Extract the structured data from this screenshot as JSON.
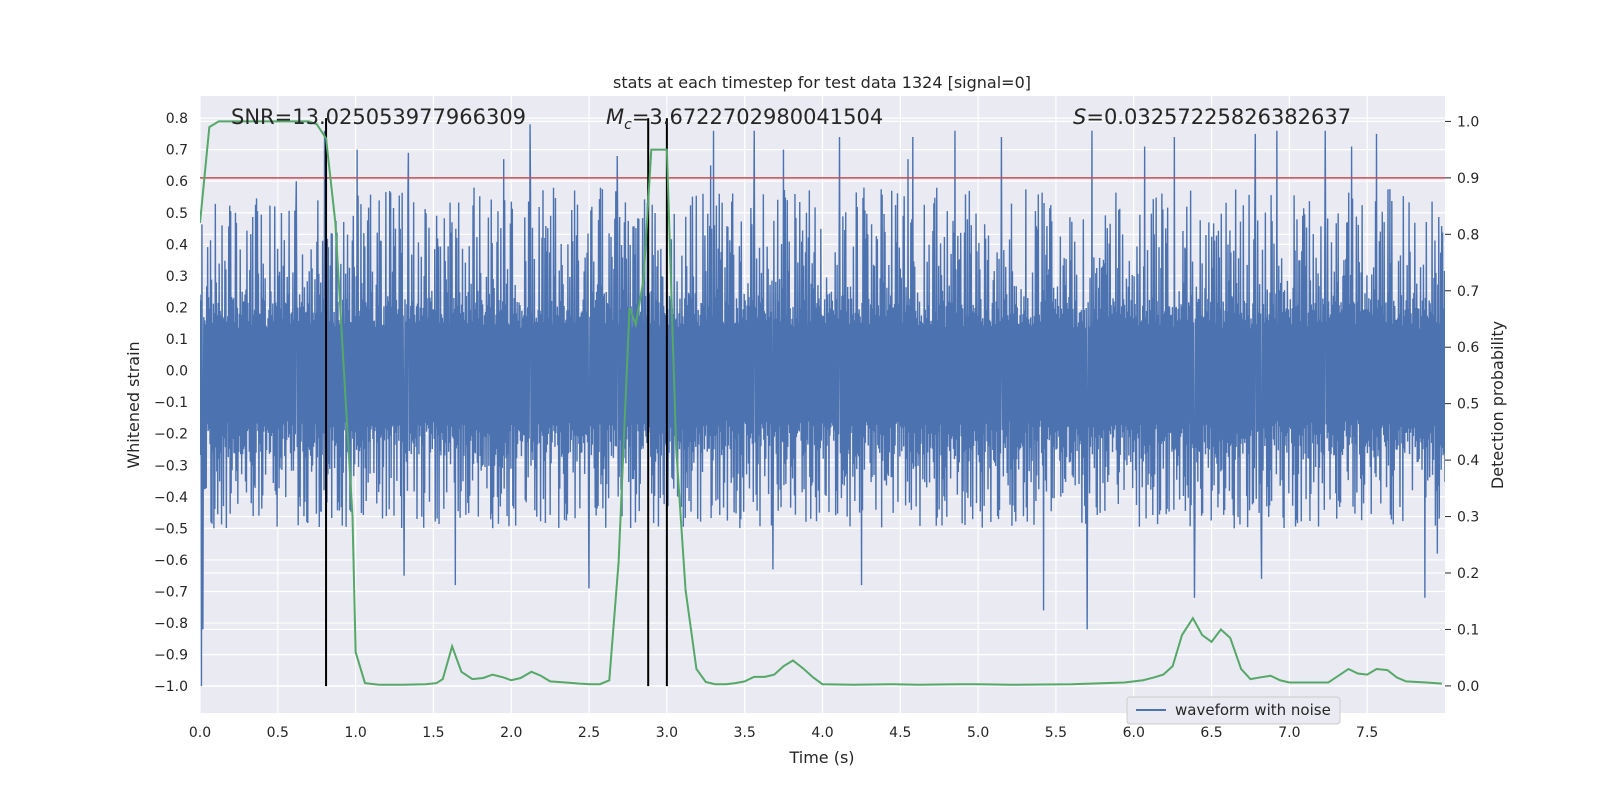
{
  "chart_data": {
    "type": "line",
    "title": "stats at each timestep for test data 1324 [signal=0]",
    "xlabel": "Time (s)",
    "ylabel": "Whitened strain",
    "y2label": "Detection probability",
    "xlim": [
      0,
      8
    ],
    "ylim": [
      -1.085,
      0.87
    ],
    "y2lim": [
      -0.048,
      1.045
    ],
    "x_ticks": [
      0.0,
      0.5,
      1.0,
      1.5,
      2.0,
      2.5,
      3.0,
      3.5,
      4.0,
      4.5,
      5.0,
      5.5,
      6.0,
      6.5,
      7.0,
      7.5
    ],
    "y_ticks": [
      0.8,
      0.7,
      0.6,
      0.5,
      0.4,
      0.3,
      0.2,
      0.1,
      0.0,
      -0.1,
      -0.2,
      -0.3,
      -0.4,
      -0.5,
      -0.6,
      -0.7,
      -0.8,
      -0.9,
      -1.0
    ],
    "y2_ticks": [
      1.0,
      0.9,
      0.8,
      0.7,
      0.6,
      0.5,
      0.4,
      0.3,
      0.2,
      0.1,
      0.0
    ],
    "grid": true,
    "legend_position": "bottom-right",
    "annotations": {
      "snr": "SNR=13.025053977966309",
      "mc_symbol": "M",
      "mc_subscript": "c",
      "mc_value": "=3.6722702980041504",
      "s_symbol": "S",
      "s_value": "=0.03257225826382637"
    },
    "threshold": {
      "value": 0.9,
      "axis": "right",
      "color": "#c44e52"
    },
    "vertical_lines": {
      "x": [
        0.81,
        2.88,
        3.0
      ],
      "y_from": -1.0,
      "y_to": 0.8,
      "color": "#000000"
    },
    "series": [
      {
        "name": "waveform with noise",
        "color": "#4c72b0",
        "axis": "left",
        "band": {
          "dense_upper": [
            0.22,
            0.25
          ],
          "dense_lower": [
            -0.26,
            -0.29
          ],
          "typical_peak_max": 0.58,
          "typical_trough_min": -0.5
        },
        "spikes": [
          {
            "x": 0.01,
            "y": -1.0
          },
          {
            "x": 0.02,
            "y": -0.82
          },
          {
            "x": 0.62,
            "y": 0.6
          },
          {
            "x": 0.8,
            "y": 0.76
          },
          {
            "x": 1.01,
            "y": 0.7
          },
          {
            "x": 1.34,
            "y": 0.69
          },
          {
            "x": 1.31,
            "y": -0.65
          },
          {
            "x": 1.64,
            "y": -0.68
          },
          {
            "x": 1.95,
            "y": 0.67
          },
          {
            "x": 2.12,
            "y": 0.78
          },
          {
            "x": 2.5,
            "y": -0.69
          },
          {
            "x": 2.68,
            "y": 0.68
          },
          {
            "x": 3.28,
            "y": 0.65
          },
          {
            "x": 3.3,
            "y": 0.76
          },
          {
            "x": 3.56,
            "y": 0.76
          },
          {
            "x": 3.68,
            "y": -0.63
          },
          {
            "x": 3.75,
            "y": 0.7
          },
          {
            "x": 4.11,
            "y": 0.74
          },
          {
            "x": 4.25,
            "y": -0.68
          },
          {
            "x": 4.55,
            "y": 0.67
          },
          {
            "x": 4.58,
            "y": 0.74
          },
          {
            "x": 4.85,
            "y": 0.76
          },
          {
            "x": 5.15,
            "y": 0.74
          },
          {
            "x": 5.42,
            "y": -0.76
          },
          {
            "x": 5.73,
            "y": 0.76
          },
          {
            "x": 5.7,
            "y": -0.82
          },
          {
            "x": 6.07,
            "y": 0.71
          },
          {
            "x": 6.26,
            "y": 0.74
          },
          {
            "x": 6.39,
            "y": -0.72
          },
          {
            "x": 6.78,
            "y": 0.75
          },
          {
            "x": 6.92,
            "y": 0.76
          },
          {
            "x": 6.82,
            "y": -0.66
          },
          {
            "x": 7.23,
            "y": 0.76
          },
          {
            "x": 7.4,
            "y": 0.71
          },
          {
            "x": 7.56,
            "y": 0.75
          },
          {
            "x": 7.87,
            "y": -0.72
          },
          {
            "x": 7.95,
            "y": -0.58
          }
        ]
      },
      {
        "name": "",
        "color": "#55a868",
        "axis": "right",
        "x": [
          0.0,
          0.06,
          0.12,
          0.2,
          0.3,
          0.4,
          0.5,
          0.6,
          0.7,
          0.75,
          0.81,
          0.87,
          0.92,
          0.98,
          1.0,
          1.06,
          1.15,
          1.3,
          1.45,
          1.52,
          1.56,
          1.62,
          1.68,
          1.75,
          1.82,
          1.88,
          1.95,
          2.0,
          2.06,
          2.13,
          2.19,
          2.25,
          2.35,
          2.44,
          2.51,
          2.57,
          2.63,
          2.69,
          2.76,
          2.8,
          2.85,
          2.9,
          2.94,
          3.0,
          3.06,
          3.12,
          3.19,
          3.25,
          3.31,
          3.38,
          3.44,
          3.5,
          3.56,
          3.63,
          3.69,
          3.75,
          3.81,
          3.88,
          3.94,
          4.0,
          4.2,
          4.45,
          4.62,
          4.87,
          5.0,
          5.2,
          5.6,
          5.94,
          6.06,
          6.13,
          6.19,
          6.25,
          6.31,
          6.38,
          6.44,
          6.5,
          6.56,
          6.62,
          6.69,
          6.75,
          6.81,
          6.88,
          6.94,
          7.0,
          7.25,
          7.38,
          7.44,
          7.5,
          7.56,
          7.63,
          7.69,
          7.75,
          7.88,
          7.98
        ],
        "y": [
          0.82,
          0.99,
          1.0,
          1.0,
          1.0,
          1.0,
          1.0,
          1.0,
          1.0,
          0.995,
          0.97,
          0.82,
          0.58,
          0.3,
          0.06,
          0.005,
          0.002,
          0.002,
          0.003,
          0.005,
          0.012,
          0.07,
          0.025,
          0.012,
          0.014,
          0.02,
          0.015,
          0.01,
          0.014,
          0.025,
          0.018,
          0.008,
          0.006,
          0.004,
          0.003,
          0.003,
          0.01,
          0.22,
          0.67,
          0.64,
          0.72,
          0.95,
          0.95,
          0.95,
          0.42,
          0.17,
          0.03,
          0.007,
          0.003,
          0.003,
          0.005,
          0.008,
          0.016,
          0.016,
          0.02,
          0.035,
          0.045,
          0.03,
          0.015,
          0.003,
          0.002,
          0.003,
          0.002,
          0.003,
          0.003,
          0.002,
          0.003,
          0.006,
          0.01,
          0.015,
          0.02,
          0.035,
          0.09,
          0.12,
          0.09,
          0.078,
          0.1,
          0.085,
          0.03,
          0.012,
          0.015,
          0.018,
          0.01,
          0.006,
          0.006,
          0.03,
          0.022,
          0.02,
          0.03,
          0.028,
          0.015,
          0.008,
          0.006,
          0.004
        ]
      }
    ]
  }
}
